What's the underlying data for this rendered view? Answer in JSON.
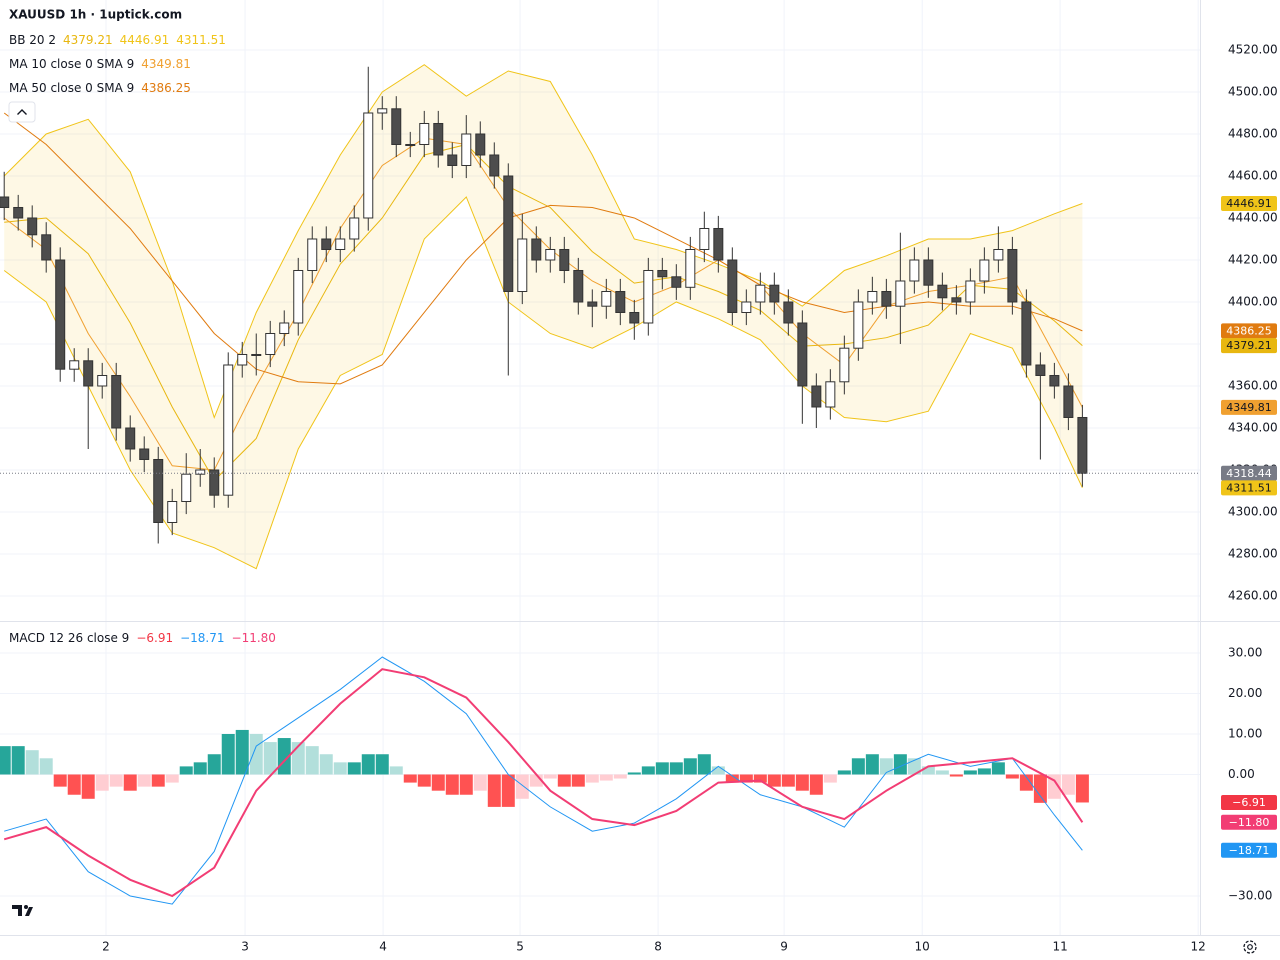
{
  "header": {
    "title": "XAUUSD 1h · 1uptick.com"
  },
  "chart_data": [
    {
      "type": "candlestick",
      "xlim": [
        -0.3,
        85.4
      ],
      "xticks": [
        {
          "value": 7.27,
          "label": "2"
        },
        {
          "value": 17.2,
          "label": "3"
        },
        {
          "value": 27.06,
          "label": "4"
        },
        {
          "value": 36.84,
          "label": "5"
        },
        {
          "value": 46.7,
          "label": "8"
        },
        {
          "value": 55.7,
          "label": "9"
        },
        {
          "value": 65.56,
          "label": "10"
        },
        {
          "value": 75.41,
          "label": "11"
        },
        {
          "value": 85.27,
          "label": "12"
        }
      ],
      "ylim": [
        4248.57,
        4529.52
      ],
      "yticks": [
        {
          "value": 4260,
          "label": "4260.00"
        },
        {
          "value": 4280,
          "label": "4280.00"
        },
        {
          "value": 4300,
          "label": "4300.00"
        },
        {
          "value": 4320,
          "label": "4320.00"
        },
        {
          "value": 4340,
          "label": "4340.00"
        },
        {
          "value": 4360,
          "label": "4360.00"
        },
        {
          "value": 4380,
          "label": "4380.00"
        },
        {
          "value": 4400,
          "label": "4400.00"
        },
        {
          "value": 4420,
          "label": "4420.00"
        },
        {
          "value": 4440,
          "label": "4440.00"
        },
        {
          "value": 4460,
          "label": "4460.00"
        },
        {
          "value": 4480,
          "label": "4480.00"
        },
        {
          "value": 4500,
          "label": "4500.00"
        },
        {
          "value": 4520,
          "label": "4520.00"
        }
      ],
      "grid": true,
      "colors": {
        "up": "#ffffff",
        "down": "#4d4d4d",
        "wick": "#333333",
        "band_fill": "rgba(245,200,40,0.12)",
        "last_price": "#787b86"
      },
      "open": [
        4450,
        4445,
        4440,
        4432,
        4420,
        4368,
        4372,
        4360,
        4365,
        4340,
        4330,
        4325,
        4295,
        4305,
        4318,
        4320,
        4308,
        4370,
        4375,
        4375,
        4385,
        4390,
        4415,
        4430,
        4425,
        4430,
        4440,
        4490,
        4492,
        4475,
        4475,
        4485,
        4470,
        4465,
        4480,
        4470,
        4460,
        4405,
        4430,
        4420,
        4425,
        4415,
        4400,
        4398,
        4405,
        4395,
        4390,
        4415,
        4412,
        4407,
        4425,
        4435,
        4420,
        4395,
        4400,
        4408,
        4400,
        4390,
        4360,
        4350,
        4362,
        4378,
        4400,
        4405,
        4398,
        4410,
        4420,
        4408,
        4402,
        4400,
        4410,
        4420,
        4425,
        4400,
        4370,
        4365,
        4360,
        4345
      ],
      "high": [
        4462,
        4451,
        4446,
        4438,
        4426,
        4378,
        4378,
        4371,
        4371,
        4346,
        4336,
        4331,
        4311,
        4328,
        4330,
        4326,
        4376,
        4381,
        4385,
        4391,
        4396,
        4421,
        4436,
        4436,
        4436,
        4446,
        4512,
        4498,
        4498,
        4481,
        4491,
        4491,
        4476,
        4489,
        4486,
        4476,
        4466,
        4442,
        4436,
        4431,
        4431,
        4421,
        4406,
        4411,
        4411,
        4401,
        4421,
        4421,
        4418,
        4431,
        4443,
        4441,
        4426,
        4406,
        4414,
        4414,
        4406,
        4396,
        4366,
        4368,
        4384,
        4406,
        4412,
        4411,
        4433,
        4426,
        4426,
        4414,
        4408,
        4416,
        4426,
        4436,
        4431,
        4406,
        4376,
        4371,
        4366,
        4351
      ],
      "low": [
        4439,
        4434,
        4426,
        4414,
        4362,
        4362,
        4330,
        4354,
        4334,
        4324,
        4319,
        4285,
        4289,
        4299,
        4312,
        4302,
        4302,
        4364,
        4365,
        4369,
        4379,
        4384,
        4409,
        4419,
        4419,
        4424,
        4434,
        4482,
        4469,
        4469,
        4469,
        4464,
        4459,
        4459,
        4464,
        4454,
        4365,
        4399,
        4414,
        4414,
        4409,
        4394,
        4388,
        4392,
        4389,
        4382,
        4384,
        4406,
        4401,
        4401,
        4419,
        4414,
        4389,
        4389,
        4394,
        4394,
        4384,
        4342,
        4340,
        4344,
        4356,
        4372,
        4394,
        4392,
        4380,
        4404,
        4402,
        4396,
        4394,
        4394,
        4404,
        4414,
        4394,
        4364,
        4325,
        4354,
        4339,
        4312
      ],
      "close": [
        4445,
        4440,
        4432,
        4420,
        4368,
        4372,
        4360,
        4365,
        4340,
        4330,
        4325,
        4295,
        4305,
        4318,
        4320,
        4308,
        4370,
        4375,
        4375,
        4385,
        4390,
        4415,
        4430,
        4425,
        4430,
        4440,
        4490,
        4492,
        4475,
        4475,
        4485,
        4470,
        4465,
        4480,
        4470,
        4460,
        4405,
        4430,
        4420,
        4425,
        4415,
        4400,
        4398,
        4405,
        4395,
        4390,
        4415,
        4412,
        4407,
        4425,
        4435,
        4420,
        4395,
        4400,
        4408,
        4400,
        4390,
        4360,
        4350,
        4362,
        4378,
        4400,
        4405,
        4398,
        4410,
        4420,
        4408,
        4402,
        4400,
        4410,
        4420,
        4425,
        4400,
        4370,
        4365,
        4360,
        4345,
        4318.44
      ],
      "last_price": 4318.44,
      "overlay_x": [
        0,
        3,
        6,
        9,
        12,
        15,
        18,
        21,
        24,
        27,
        30,
        33,
        36,
        39,
        42,
        45,
        48,
        51,
        54,
        57,
        60,
        63,
        66,
        69,
        72,
        75,
        77
      ],
      "indicators": [
        {
          "name": "BB 20 2",
          "band": true,
          "series": [
            {
              "color": "#e8b710",
              "values": [
                4438,
                4440,
                4423,
                4390,
                4350,
                4315,
                4335,
                4382,
                4418,
                4440,
                4470,
                4475,
                4455,
                4445,
                4424,
                4409,
                4412,
                4405,
                4396,
                4379,
                4380,
                4383,
                4389,
                4408,
                4406,
                4391,
                4379.21
              ]
            },
            {
              "color": "#f0c419",
              "values": [
                4460,
                4480,
                4487,
                4462,
                4410,
                4345,
                4395,
                4434,
                4470,
                4500,
                4513,
                4498,
                4510,
                4505,
                4470,
                4430,
                4425,
                4418,
                4410,
                4398,
                4415,
                4422,
                4430,
                4430,
                4434,
                4442,
                4446.91
              ]
            },
            {
              "color": "#f0c419",
              "values": [
                4415,
                4400,
                4360,
                4320,
                4290,
                4283,
                4273,
                4330,
                4365,
                4375,
                4430,
                4450,
                4400,
                4385,
                4378,
                4388,
                4400,
                4392,
                4382,
                4360,
                4345,
                4343,
                4348,
                4385,
                4378,
                4340,
                4311.51
              ]
            }
          ]
        },
        {
          "name": "MA 10 close 0 SMA 9",
          "series": [
            {
              "color": "#f0a030",
              "values": [
                4440,
                4425,
                4385,
                4355,
                4322,
                4320,
                4360,
                4395,
                4435,
                4465,
                4478,
                4475,
                4445,
                4425,
                4410,
                4400,
                4408,
                4420,
                4408,
                4385,
                4370,
                4398,
                4405,
                4408,
                4412,
                4375,
                4349.81
              ]
            }
          ]
        },
        {
          "name": "MA 50 close 0 SMA 9",
          "series": [
            {
              "color": "#e07b10",
              "values": [
                4490,
                4475,
                4455,
                4435,
                4410,
                4385,
                4368,
                4362,
                4361,
                4370,
                4395,
                4420,
                4440,
                4446,
                4445,
                4440,
                4430,
                4420,
                4408,
                4400,
                4395,
                4398,
                4400,
                4398,
                4398,
                4392,
                4386.25
              ]
            }
          ]
        }
      ]
    },
    {
      "type": "macd",
      "name": "MACD 12 26 close 9",
      "ylim": [
        -39.63,
        37.65
      ],
      "yticks": [
        {
          "value": 30,
          "label": "30.00"
        },
        {
          "value": 20,
          "label": "20.00"
        },
        {
          "value": 10,
          "label": "10.00"
        },
        {
          "value": 0,
          "label": "0.00"
        },
        {
          "value": -30,
          "label": "−30.00"
        }
      ],
      "x": [
        0,
        3,
        6,
        9,
        12,
        15,
        18,
        21,
        24,
        27,
        30,
        33,
        36,
        39,
        42,
        45,
        48,
        51,
        54,
        57,
        60,
        63,
        66,
        69,
        72,
        75,
        77
      ],
      "histogram": {
        "color": "#f23645",
        "colors": [
          "#26a69a",
          "#b2dfdb",
          "#ff5252",
          "#ffcdd2"
        ],
        "values": [
          7,
          7,
          6,
          4,
          -3,
          -5,
          -6,
          -4,
          -3,
          -4,
          -3,
          -3,
          -2,
          2,
          3,
          5,
          10,
          11,
          10,
          8,
          9,
          8,
          7,
          5,
          3,
          3,
          5,
          5,
          2,
          -2,
          -3,
          -4,
          -5,
          -5,
          -4,
          -8,
          -8,
          -6,
          -3,
          -1,
          -3,
          -3,
          -2,
          -1.5,
          -1,
          0.5,
          2,
          3,
          3,
          4,
          5,
          2,
          -2,
          -2,
          -2,
          -3,
          -3,
          -4,
          -5,
          -2,
          1,
          4,
          5,
          4,
          5,
          4,
          2,
          1,
          -0.5,
          1,
          1.5,
          3,
          -1,
          -4,
          -7,
          -6,
          -5,
          -6.91
        ],
        "value_labels": [
          null,
          null,
          null,
          null,
          null,
          null,
          null,
          null,
          null,
          null,
          null,
          null,
          null,
          null,
          null,
          null,
          null,
          null,
          null,
          null,
          null,
          null,
          null,
          null,
          null,
          null,
          null,
          null,
          null,
          null,
          null,
          null,
          null,
          null,
          null,
          null,
          null,
          null,
          null,
          null,
          null,
          null,
          null,
          null,
          null,
          null,
          null,
          null,
          null,
          null,
          null,
          null,
          null,
          null,
          null,
          null,
          null,
          null,
          null,
          null,
          null,
          null,
          null,
          null,
          null,
          null,
          null,
          null,
          null,
          null,
          null,
          null,
          null,
          null,
          null,
          null,
          null,
          "−6.91"
        ]
      },
      "series": [
        {
          "color": "#2196f3",
          "values": [
            -14,
            -11,
            -24,
            -30,
            -32,
            -19,
            7,
            14,
            21,
            29,
            23,
            15,
            0,
            -8,
            -14,
            -12,
            -6,
            2,
            -5,
            -8,
            -13,
            0.5,
            5,
            2,
            4,
            -10,
            -18.71
          ],
          "value_labels": [
            null,
            null,
            null,
            null,
            null,
            null,
            null,
            null,
            null,
            null,
            null,
            null,
            null,
            null,
            null,
            null,
            null,
            null,
            null,
            null,
            null,
            null,
            null,
            null,
            null,
            null,
            "−18.71"
          ]
        },
        {
          "color": "#f23d74",
          "values": [
            -16,
            -13,
            -20,
            -26,
            -30,
            -23,
            -4,
            7,
            17.5,
            26,
            24,
            19,
            8,
            -4,
            -11,
            -12.5,
            -9,
            -2,
            -1.5,
            -8,
            -11,
            -4,
            2,
            3,
            4,
            -1.5,
            -11.8
          ],
          "value_labels": [
            null,
            null,
            null,
            null,
            null,
            null,
            null,
            null,
            null,
            null,
            null,
            null,
            null,
            null,
            null,
            null,
            null,
            null,
            null,
            null,
            null,
            null,
            null,
            null,
            null,
            null,
            "−11.80"
          ]
        }
      ]
    }
  ]
}
